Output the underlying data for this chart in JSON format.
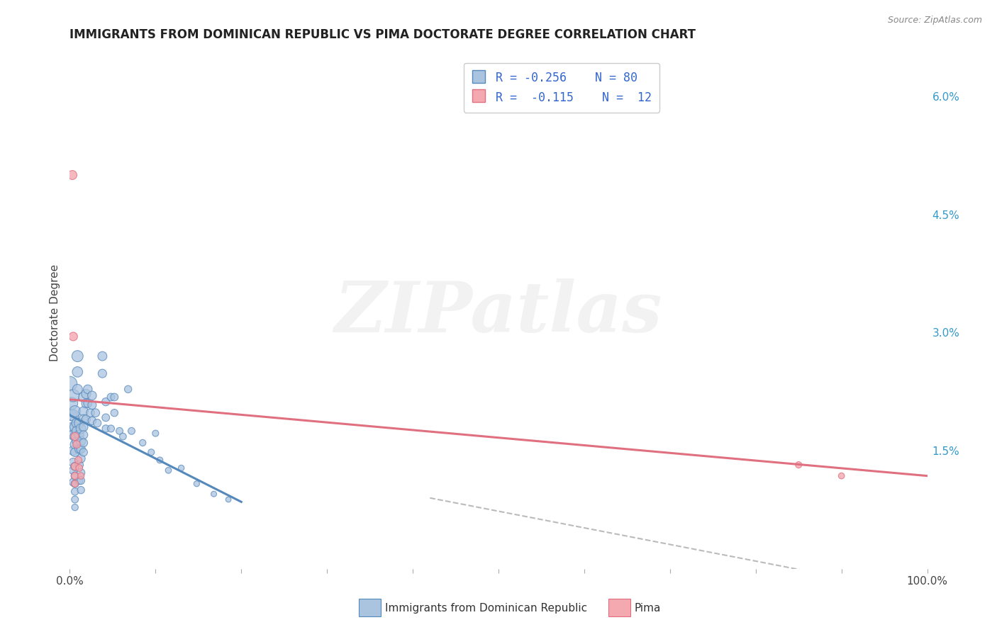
{
  "title": "IMMIGRANTS FROM DOMINICAN REPUBLIC VS PIMA DOCTORATE DEGREE CORRELATION CHART",
  "source_text": "Source: ZipAtlas.com",
  "ylabel": "Doctorate Degree",
  "xlim": [
    0.0,
    1.0
  ],
  "ylim": [
    0.0,
    0.065
  ],
  "ytick_labels_right": [
    "6.0%",
    "4.5%",
    "3.0%",
    "1.5%"
  ],
  "ytick_positions_right": [
    0.06,
    0.045,
    0.03,
    0.015
  ],
  "background_color": "#ffffff",
  "grid_color": "#d0d0d0",
  "watermark_text": "ZIPatlas",
  "color_blue": "#aac4e0",
  "color_pink": "#f4a8b0",
  "line_blue": "#5588bb",
  "line_pink": "#e07080",
  "line_dashed_color": "#bbbbbb",
  "blue_scatter": [
    [
      0.0,
      0.0235
    ],
    [
      0.002,
      0.021
    ],
    [
      0.002,
      0.0195
    ],
    [
      0.004,
      0.022
    ],
    [
      0.004,
      0.0195
    ],
    [
      0.004,
      0.018
    ],
    [
      0.004,
      0.017
    ],
    [
      0.004,
      0.015
    ],
    [
      0.004,
      0.0135
    ],
    [
      0.004,
      0.0125
    ],
    [
      0.004,
      0.011
    ],
    [
      0.006,
      0.02
    ],
    [
      0.006,
      0.018
    ],
    [
      0.006,
      0.0168
    ],
    [
      0.006,
      0.0158
    ],
    [
      0.006,
      0.0148
    ],
    [
      0.006,
      0.013
    ],
    [
      0.006,
      0.0118
    ],
    [
      0.006,
      0.0108
    ],
    [
      0.006,
      0.0098
    ],
    [
      0.006,
      0.0088
    ],
    [
      0.006,
      0.0078
    ],
    [
      0.008,
      0.0185
    ],
    [
      0.008,
      0.0175
    ],
    [
      0.008,
      0.0162
    ],
    [
      0.009,
      0.027
    ],
    [
      0.009,
      0.025
    ],
    [
      0.009,
      0.0228
    ],
    [
      0.011,
      0.0185
    ],
    [
      0.011,
      0.017
    ],
    [
      0.011,
      0.0152
    ],
    [
      0.011,
      0.0132
    ],
    [
      0.011,
      0.0112
    ],
    [
      0.013,
      0.0178
    ],
    [
      0.013,
      0.0162
    ],
    [
      0.013,
      0.0152
    ],
    [
      0.013,
      0.014
    ],
    [
      0.013,
      0.0122
    ],
    [
      0.013,
      0.0112
    ],
    [
      0.013,
      0.01
    ],
    [
      0.016,
      0.0218
    ],
    [
      0.016,
      0.02
    ],
    [
      0.016,
      0.019
    ],
    [
      0.016,
      0.018
    ],
    [
      0.016,
      0.017
    ],
    [
      0.016,
      0.016
    ],
    [
      0.016,
      0.0148
    ],
    [
      0.019,
      0.0222
    ],
    [
      0.019,
      0.021
    ],
    [
      0.019,
      0.019
    ],
    [
      0.021,
      0.0228
    ],
    [
      0.021,
      0.021
    ],
    [
      0.024,
      0.0198
    ],
    [
      0.026,
      0.022
    ],
    [
      0.026,
      0.0208
    ],
    [
      0.026,
      0.0188
    ],
    [
      0.03,
      0.0198
    ],
    [
      0.032,
      0.0185
    ],
    [
      0.038,
      0.027
    ],
    [
      0.038,
      0.0248
    ],
    [
      0.042,
      0.0212
    ],
    [
      0.042,
      0.0192
    ],
    [
      0.042,
      0.0178
    ],
    [
      0.048,
      0.0218
    ],
    [
      0.048,
      0.0178
    ],
    [
      0.052,
      0.0218
    ],
    [
      0.052,
      0.0198
    ],
    [
      0.058,
      0.0175
    ],
    [
      0.062,
      0.0168
    ],
    [
      0.068,
      0.0228
    ],
    [
      0.072,
      0.0175
    ],
    [
      0.085,
      0.016
    ],
    [
      0.095,
      0.0148
    ],
    [
      0.1,
      0.0172
    ],
    [
      0.105,
      0.0138
    ],
    [
      0.115,
      0.0125
    ],
    [
      0.13,
      0.0128
    ],
    [
      0.148,
      0.0108
    ],
    [
      0.168,
      0.0095
    ],
    [
      0.185,
      0.0088
    ]
  ],
  "blue_sizes": [
    220,
    160,
    130,
    160,
    130,
    110,
    100,
    90,
    80,
    70,
    65,
    130,
    110,
    100,
    90,
    80,
    70,
    65,
    60,
    55,
    50,
    45,
    100,
    90,
    80,
    130,
    110,
    100,
    100,
    90,
    80,
    70,
    60,
    100,
    90,
    80,
    75,
    65,
    60,
    55,
    100,
    90,
    85,
    80,
    75,
    70,
    65,
    90,
    85,
    75,
    80,
    72,
    70,
    80,
    74,
    66,
    70,
    65,
    85,
    75,
    65,
    60,
    55,
    60,
    52,
    60,
    55,
    50,
    48,
    55,
    50,
    44,
    42,
    42,
    40,
    38,
    36,
    34,
    32,
    30
  ],
  "pink_scatter": [
    [
      0.003,
      0.05
    ],
    [
      0.004,
      0.0295
    ],
    [
      0.006,
      0.0168
    ],
    [
      0.006,
      0.013
    ],
    [
      0.006,
      0.0118
    ],
    [
      0.006,
      0.0108
    ],
    [
      0.008,
      0.0158
    ],
    [
      0.01,
      0.0138
    ],
    [
      0.011,
      0.0128
    ],
    [
      0.013,
      0.0118
    ],
    [
      0.85,
      0.0132
    ],
    [
      0.9,
      0.0118
    ]
  ],
  "pink_sizes": [
    85,
    75,
    65,
    58,
    52,
    48,
    58,
    52,
    48,
    44,
    42,
    38
  ],
  "blue_trend_x": [
    0.0,
    0.2
  ],
  "blue_trend_y": [
    0.0195,
    0.0085
  ],
  "pink_trend_x": [
    0.0,
    1.0
  ],
  "pink_trend_y": [
    0.0215,
    0.0118
  ],
  "dashed_trend_x": [
    0.42,
    0.87
  ],
  "dashed_trend_y": [
    0.009,
    -0.0005
  ],
  "legend_label1": "R = -0.256    N = 80",
  "legend_label2": "R =  -0.115    N =  12",
  "bottom_label1": "Immigrants from Dominican Republic",
  "bottom_label2": "Pima",
  "title_fontsize": 12,
  "legend_fontsize": 12,
  "watermark_fontsize": 72,
  "watermark_alpha": 0.1
}
